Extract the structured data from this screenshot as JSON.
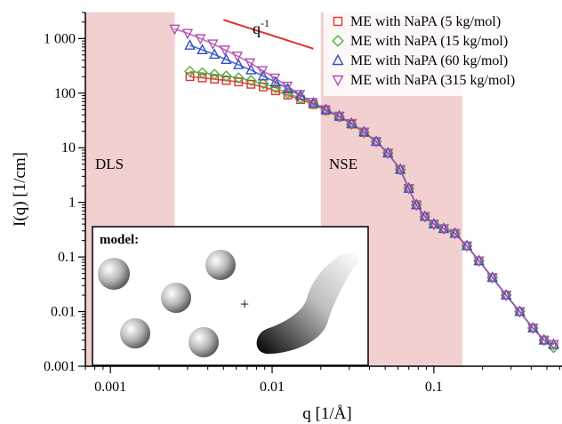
{
  "chart_data": {
    "type": "scatter",
    "title": "",
    "xlabel": "q [1/Å]",
    "ylabel": "I(q) [1/cm]",
    "x_scale": "log",
    "y_scale": "log",
    "xlim": [
      0.0007,
      0.62
    ],
    "ylim": [
      0.001,
      3000
    ],
    "x_ticks": [
      {
        "value": 0.001,
        "label": "0.001"
      },
      {
        "value": 0.01,
        "label": "0.01"
      },
      {
        "value": 0.1,
        "label": "0.1"
      }
    ],
    "y_ticks": [
      {
        "value": 0.001,
        "label": "0.001"
      },
      {
        "value": 0.01,
        "label": "0.01"
      },
      {
        "value": 0.1,
        "label": "0.1"
      },
      {
        "value": 1,
        "label": "1"
      },
      {
        "value": 10,
        "label": "10"
      },
      {
        "value": 100,
        "label": "100"
      },
      {
        "value": 1000,
        "label": "1 000"
      }
    ],
    "grid": false,
    "legend_position": "top-right",
    "regions": [
      {
        "label": "DLS",
        "x_range": [
          0.0007,
          0.0025
        ],
        "color": "#f2d0d0"
      },
      {
        "label": "NSE",
        "x_range": [
          0.02,
          0.15
        ],
        "color": "#f2d0d0"
      }
    ],
    "annotation": {
      "text": "q",
      "superscript": "-1",
      "line_x": [
        0.005,
        0.018
      ],
      "line_y": [
        2200,
        650
      ],
      "color": "#e03030"
    },
    "series": [
      {
        "name": "ME with NaPA (5 kg/mol)",
        "marker": "square",
        "color": "#e03030",
        "x": [
          0.0031,
          0.0037,
          0.0044,
          0.0052,
          0.0062,
          0.0074,
          0.0088,
          0.0105,
          0.0125,
          0.015,
          0.018,
          0.0215,
          0.026,
          0.031,
          0.037,
          0.044,
          0.052,
          0.062,
          0.07,
          0.078,
          0.088,
          0.1,
          0.115,
          0.135,
          0.16,
          0.19,
          0.23,
          0.28,
          0.34,
          0.41,
          0.48,
          0.55
        ],
        "y": [
          200,
          190,
          180,
          170,
          160,
          145,
          130,
          110,
          92,
          76,
          62,
          48,
          37,
          27,
          19,
          13,
          8,
          4,
          1.8,
          0.9,
          0.55,
          0.4,
          0.33,
          0.27,
          0.16,
          0.085,
          0.042,
          0.02,
          0.01,
          0.005,
          0.003,
          0.0025
        ]
      },
      {
        "name": "ME with NaPA (15 kg/mol)",
        "marker": "diamond",
        "color": "#4caf3a",
        "x": [
          0.0031,
          0.0037,
          0.0044,
          0.0052,
          0.0062,
          0.0074,
          0.0088,
          0.0105,
          0.0125,
          0.015,
          0.018,
          0.0215,
          0.026,
          0.031,
          0.037,
          0.044,
          0.052,
          0.062,
          0.07,
          0.078,
          0.088,
          0.1,
          0.115,
          0.135,
          0.16,
          0.19,
          0.23,
          0.28,
          0.34,
          0.41,
          0.48,
          0.55
        ],
        "y": [
          250,
          235,
          220,
          205,
          190,
          170,
          150,
          125,
          100,
          80,
          63,
          48,
          37,
          27,
          19,
          13,
          8,
          4,
          1.8,
          0.9,
          0.55,
          0.4,
          0.33,
          0.27,
          0.16,
          0.085,
          0.042,
          0.02,
          0.01,
          0.005,
          0.003,
          0.0022
        ]
      },
      {
        "name": "ME with NaPA (60 kg/mol)",
        "marker": "triangle-up",
        "color": "#3050c0",
        "x": [
          0.0031,
          0.0037,
          0.0044,
          0.0052,
          0.0062,
          0.0074,
          0.0088,
          0.0105,
          0.0125,
          0.015,
          0.018,
          0.0215,
          0.026,
          0.031,
          0.037,
          0.044,
          0.052,
          0.062,
          0.07,
          0.078,
          0.088,
          0.1,
          0.115,
          0.135,
          0.16,
          0.19,
          0.23,
          0.28,
          0.34,
          0.41,
          0.48,
          0.55
        ],
        "y": [
          750,
          620,
          510,
          410,
          330,
          265,
          205,
          160,
          120,
          90,
          66,
          50,
          38,
          28,
          19.5,
          13,
          8,
          4,
          1.8,
          0.9,
          0.55,
          0.4,
          0.33,
          0.27,
          0.16,
          0.085,
          0.042,
          0.02,
          0.01,
          0.005,
          0.003,
          0.0025
        ]
      },
      {
        "name": "ME with NaPA (315 kg/mol)",
        "marker": "triangle-down",
        "color": "#b050b0",
        "x": [
          0.0025,
          0.003,
          0.0036,
          0.0043,
          0.0051,
          0.0061,
          0.0073,
          0.0087,
          0.0104,
          0.0124,
          0.0148,
          0.0177,
          0.0212,
          0.026,
          0.031,
          0.037,
          0.044,
          0.052,
          0.062,
          0.07,
          0.078,
          0.088,
          0.1,
          0.115,
          0.135,
          0.16,
          0.19,
          0.23,
          0.28,
          0.34,
          0.41,
          0.48,
          0.55
        ],
        "y": [
          1500,
          1250,
          1000,
          800,
          620,
          480,
          360,
          260,
          190,
          135,
          95,
          68,
          50,
          38,
          28,
          19.5,
          13,
          8,
          4,
          1.8,
          0.9,
          0.55,
          0.4,
          0.33,
          0.27,
          0.16,
          0.085,
          0.042,
          0.02,
          0.01,
          0.005,
          0.003,
          0.0025
        ]
      }
    ],
    "inset": {
      "title": "model:",
      "plus": "+"
    }
  }
}
